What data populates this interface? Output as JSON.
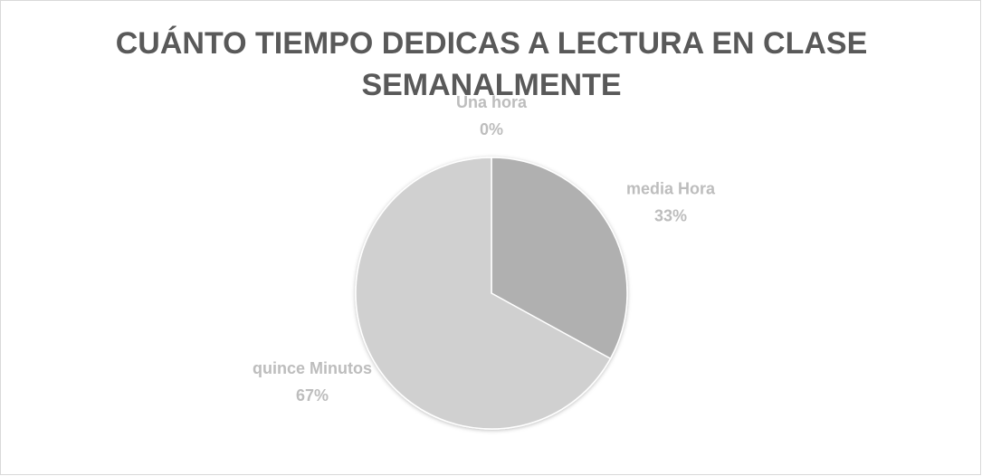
{
  "chart_data": {
    "type": "pie",
    "title": [
      "CUÁNTO TIEMPO DEDICAS A LECTURA EN CLASE",
      "SEMANALMENTE"
    ],
    "categories": [
      "Una hora",
      "media Hora",
      "quince Minutos"
    ],
    "values": [
      0,
      33,
      67
    ],
    "value_labels": [
      "0%",
      "33%",
      "67%"
    ],
    "colors": [
      "#8c8c8c",
      "#b0b0b0",
      "#d0d0d0"
    ]
  }
}
